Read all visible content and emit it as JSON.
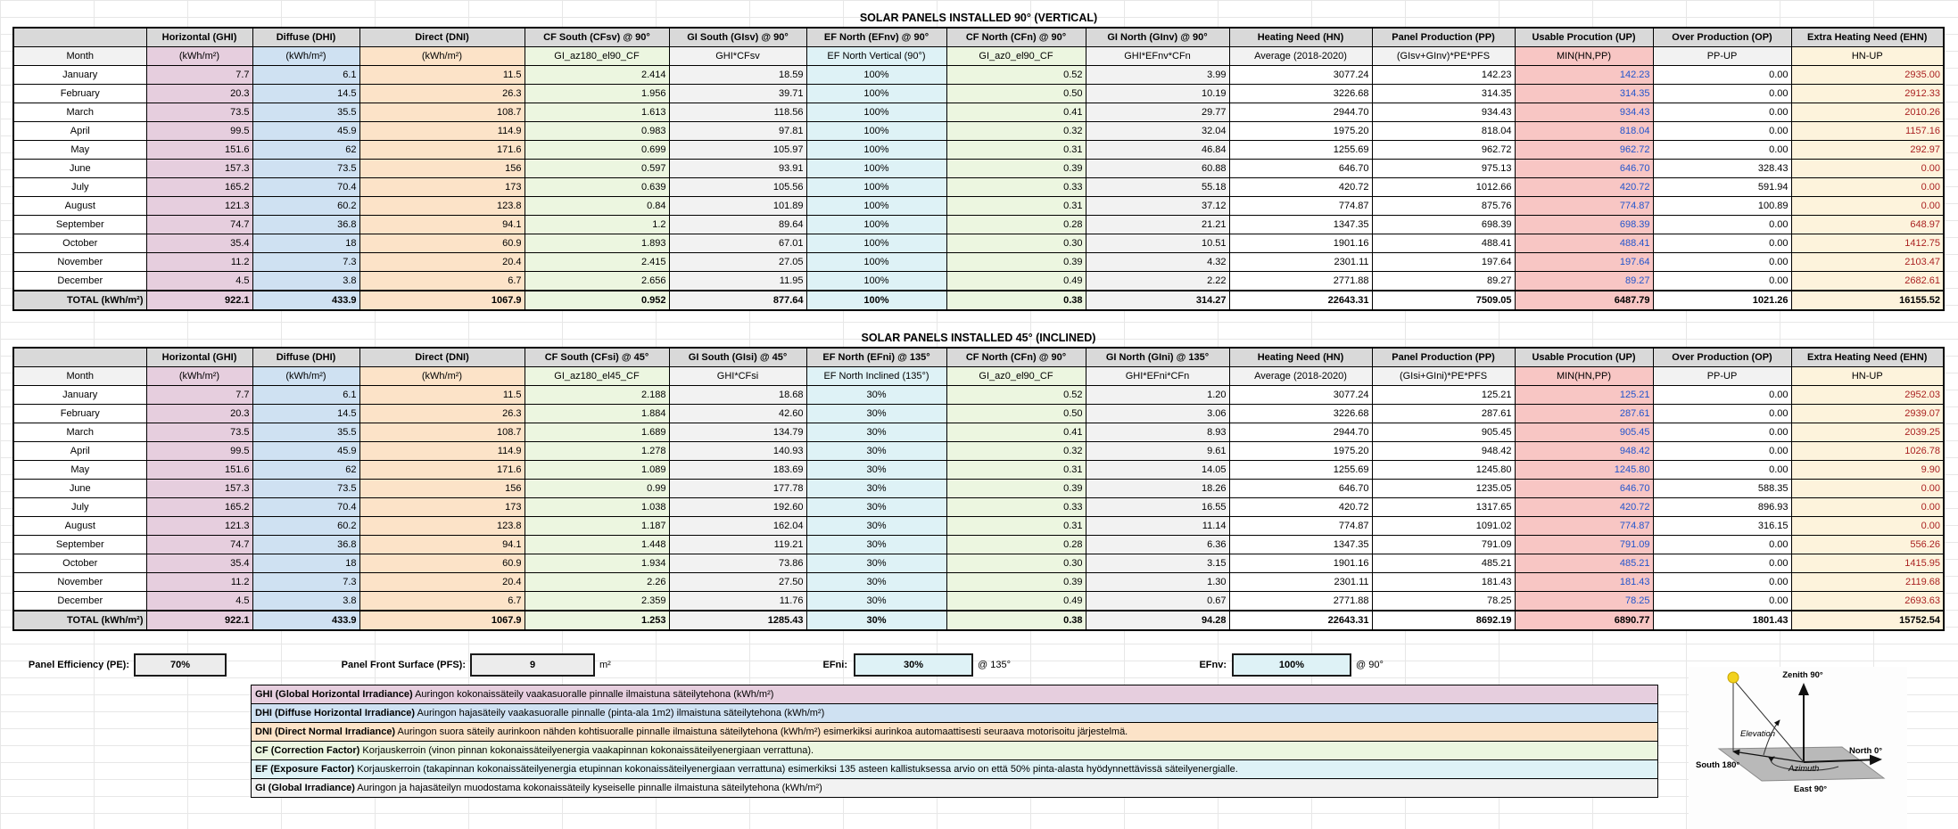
{
  "colors": {
    "header_bg": "#d9d9d9",
    "ghi_bg": "#e6cede",
    "dhi_bg": "#cfe1f2",
    "dni_bg": "#fce3c8",
    "cf_bg": "#ecf6e0",
    "gi_bg": "#f2f2f2",
    "ef_bg": "#def2f6",
    "up_bg": "#f8c6c4",
    "ehn_bg": "#fdf3dc",
    "up_text": "#2255cc",
    "ehn_text": "#aa2222"
  },
  "tables": [
    {
      "title": "SOLAR PANELS INSTALLED 90° (VERTICAL)",
      "columns": [
        {
          "key": "month",
          "header": "",
          "sub": "Month"
        },
        {
          "key": "ghi",
          "header": "Horizontal (GHI)",
          "sub": "(kWh/m²)"
        },
        {
          "key": "dhi",
          "header": "Diffuse (DHI)",
          "sub": "(kWh/m²)"
        },
        {
          "key": "dni",
          "header": "Direct (DNI)",
          "sub": "(kWh/m²)"
        },
        {
          "key": "cfs",
          "header": "CF South (CFsv) @ 90°",
          "sub": "GI_az180_el90_CF"
        },
        {
          "key": "gis",
          "header": "GI South (GIsv) @ 90°",
          "sub": "GHI*CFsv"
        },
        {
          "key": "efn",
          "header": "EF North (EFnv) @ 90°",
          "sub": "EF North Vertical (90°)"
        },
        {
          "key": "cfn",
          "header": "CF North (CFn) @ 90°",
          "sub": "GI_az0_el90_CF"
        },
        {
          "key": "gin",
          "header": "GI North (GInv) @ 90°",
          "sub": "GHI*EFnv*CFn"
        },
        {
          "key": "hn",
          "header": "Heating Need (HN)",
          "sub": "Average (2018-2020)"
        },
        {
          "key": "pp",
          "header": "Panel Production (PP)",
          "sub": "(GIsv+GInv)*PE*PFS"
        },
        {
          "key": "up",
          "header": "Usable Procution (UP)",
          "sub": "MIN(HN,PP)"
        },
        {
          "key": "op",
          "header": "Over Production (OP)",
          "sub": "PP-UP"
        },
        {
          "key": "ehn",
          "header": "Extra Heating Need (EHN)",
          "sub": "HN-UP"
        }
      ],
      "rows": [
        {
          "month": "January",
          "values": [
            "7.7",
            "6.1",
            "11.5",
            "2.414",
            "18.59",
            "100%",
            "0.52",
            "3.99",
            "3077.24",
            "142.23",
            "142.23",
            "0.00",
            "2935.00"
          ]
        },
        {
          "month": "February",
          "values": [
            "20.3",
            "14.5",
            "26.3",
            "1.956",
            "39.71",
            "100%",
            "0.50",
            "10.19",
            "3226.68",
            "314.35",
            "314.35",
            "0.00",
            "2912.33"
          ]
        },
        {
          "month": "March",
          "values": [
            "73.5",
            "35.5",
            "108.7",
            "1.613",
            "118.56",
            "100%",
            "0.41",
            "29.77",
            "2944.70",
            "934.43",
            "934.43",
            "0.00",
            "2010.26"
          ]
        },
        {
          "month": "April",
          "values": [
            "99.5",
            "45.9",
            "114.9",
            "0.983",
            "97.81",
            "100%",
            "0.32",
            "32.04",
            "1975.20",
            "818.04",
            "818.04",
            "0.00",
            "1157.16"
          ]
        },
        {
          "month": "May",
          "values": [
            "151.6",
            "62",
            "171.6",
            "0.699",
            "105.97",
            "100%",
            "0.31",
            "46.84",
            "1255.69",
            "962.72",
            "962.72",
            "0.00",
            "292.97"
          ]
        },
        {
          "month": "June",
          "values": [
            "157.3",
            "73.5",
            "156",
            "0.597",
            "93.91",
            "100%",
            "0.39",
            "60.88",
            "646.70",
            "975.13",
            "646.70",
            "328.43",
            "0.00"
          ]
        },
        {
          "month": "July",
          "values": [
            "165.2",
            "70.4",
            "173",
            "0.639",
            "105.56",
            "100%",
            "0.33",
            "55.18",
            "420.72",
            "1012.66",
            "420.72",
            "591.94",
            "0.00"
          ]
        },
        {
          "month": "August",
          "values": [
            "121.3",
            "60.2",
            "123.8",
            "0.84",
            "101.89",
            "100%",
            "0.31",
            "37.12",
            "774.87",
            "875.76",
            "774.87",
            "100.89",
            "0.00"
          ]
        },
        {
          "month": "September",
          "values": [
            "74.7",
            "36.8",
            "94.1",
            "1.2",
            "89.64",
            "100%",
            "0.28",
            "21.21",
            "1347.35",
            "698.39",
            "698.39",
            "0.00",
            "648.97"
          ]
        },
        {
          "month": "October",
          "values": [
            "35.4",
            "18",
            "60.9",
            "1.893",
            "67.01",
            "100%",
            "0.30",
            "10.51",
            "1901.16",
            "488.41",
            "488.41",
            "0.00",
            "1412.75"
          ]
        },
        {
          "month": "November",
          "values": [
            "11.2",
            "7.3",
            "20.4",
            "2.415",
            "27.05",
            "100%",
            "0.39",
            "4.32",
            "2301.11",
            "197.64",
            "197.64",
            "0.00",
            "2103.47"
          ]
        },
        {
          "month": "December",
          "values": [
            "4.5",
            "3.8",
            "6.7",
            "2.656",
            "11.95",
            "100%",
            "0.49",
            "2.22",
            "2771.88",
            "89.27",
            "89.27",
            "0.00",
            "2682.61"
          ]
        }
      ],
      "total": {
        "label": "TOTAL (kWh/m²)",
        "values": [
          "922.1",
          "433.9",
          "1067.9",
          "0.952",
          "877.64",
          "100%",
          "0.38",
          "314.27",
          "22643.31",
          "7509.05",
          "6487.79",
          "1021.26",
          "16155.52"
        ]
      }
    },
    {
      "title": "SOLAR PANELS INSTALLED 45° (INCLINED)",
      "columns": [
        {
          "key": "month",
          "header": "",
          "sub": "Month"
        },
        {
          "key": "ghi",
          "header": "Horizontal (GHI)",
          "sub": "(kWh/m²)"
        },
        {
          "key": "dhi",
          "header": "Diffuse (DHI)",
          "sub": "(kWh/m²)"
        },
        {
          "key": "dni",
          "header": "Direct (DNI)",
          "sub": "(kWh/m²)"
        },
        {
          "key": "cfs",
          "header": "CF South (CFsi) @ 45°",
          "sub": "GI_az180_el45_CF"
        },
        {
          "key": "gis",
          "header": "GI South (GIsi) @ 45°",
          "sub": "GHI*CFsi"
        },
        {
          "key": "efn",
          "header": "EF North (EFni) @ 135°",
          "sub": "EF North Inclined (135°)"
        },
        {
          "key": "cfn",
          "header": "CF North (CFn) @ 90°",
          "sub": "GI_az0_el90_CF"
        },
        {
          "key": "gin",
          "header": "GI North (GIni) @ 135°",
          "sub": "GHI*EFni*CFn"
        },
        {
          "key": "hn",
          "header": "Heating Need (HN)",
          "sub": "Average (2018-2020)"
        },
        {
          "key": "pp",
          "header": "Panel Production (PP)",
          "sub": "(GIsi+GIni)*PE*PFS"
        },
        {
          "key": "up",
          "header": "Usable Procution (UP)",
          "sub": "MIN(HN,PP)"
        },
        {
          "key": "op",
          "header": "Over Production (OP)",
          "sub": "PP-UP"
        },
        {
          "key": "ehn",
          "header": "Extra Heating Need (EHN)",
          "sub": "HN-UP"
        }
      ],
      "rows": [
        {
          "month": "January",
          "values": [
            "7.7",
            "6.1",
            "11.5",
            "2.188",
            "18.68",
            "30%",
            "0.52",
            "1.20",
            "3077.24",
            "125.21",
            "125.21",
            "0.00",
            "2952.03"
          ]
        },
        {
          "month": "February",
          "values": [
            "20.3",
            "14.5",
            "26.3",
            "1.884",
            "42.60",
            "30%",
            "0.50",
            "3.06",
            "3226.68",
            "287.61",
            "287.61",
            "0.00",
            "2939.07"
          ]
        },
        {
          "month": "March",
          "values": [
            "73.5",
            "35.5",
            "108.7",
            "1.689",
            "134.79",
            "30%",
            "0.41",
            "8.93",
            "2944.70",
            "905.45",
            "905.45",
            "0.00",
            "2039.25"
          ]
        },
        {
          "month": "April",
          "values": [
            "99.5",
            "45.9",
            "114.9",
            "1.278",
            "140.93",
            "30%",
            "0.32",
            "9.61",
            "1975.20",
            "948.42",
            "948.42",
            "0.00",
            "1026.78"
          ]
        },
        {
          "month": "May",
          "values": [
            "151.6",
            "62",
            "171.6",
            "1.089",
            "183.69",
            "30%",
            "0.31",
            "14.05",
            "1255.69",
            "1245.80",
            "1245.80",
            "0.00",
            "9.90"
          ]
        },
        {
          "month": "June",
          "values": [
            "157.3",
            "73.5",
            "156",
            "0.99",
            "177.78",
            "30%",
            "0.39",
            "18.26",
            "646.70",
            "1235.05",
            "646.70",
            "588.35",
            "0.00"
          ]
        },
        {
          "month": "July",
          "values": [
            "165.2",
            "70.4",
            "173",
            "1.038",
            "192.60",
            "30%",
            "0.33",
            "16.55",
            "420.72",
            "1317.65",
            "420.72",
            "896.93",
            "0.00"
          ]
        },
        {
          "month": "August",
          "values": [
            "121.3",
            "60.2",
            "123.8",
            "1.187",
            "162.04",
            "30%",
            "0.31",
            "11.14",
            "774.87",
            "1091.02",
            "774.87",
            "316.15",
            "0.00"
          ]
        },
        {
          "month": "September",
          "values": [
            "74.7",
            "36.8",
            "94.1",
            "1.448",
            "119.21",
            "30%",
            "0.28",
            "6.36",
            "1347.35",
            "791.09",
            "791.09",
            "0.00",
            "556.26"
          ]
        },
        {
          "month": "October",
          "values": [
            "35.4",
            "18",
            "60.9",
            "1.934",
            "73.86",
            "30%",
            "0.30",
            "3.15",
            "1901.16",
            "485.21",
            "485.21",
            "0.00",
            "1415.95"
          ]
        },
        {
          "month": "November",
          "values": [
            "11.2",
            "7.3",
            "20.4",
            "2.26",
            "27.50",
            "30%",
            "0.39",
            "1.30",
            "2301.11",
            "181.43",
            "181.43",
            "0.00",
            "2119.68"
          ]
        },
        {
          "month": "December",
          "values": [
            "4.5",
            "3.8",
            "6.7",
            "2.359",
            "11.76",
            "30%",
            "0.49",
            "0.67",
            "2771.88",
            "78.25",
            "78.25",
            "0.00",
            "2693.63"
          ]
        }
      ],
      "total": {
        "label": "TOTAL (kWh/m²)",
        "values": [
          "922.1",
          "433.9",
          "1067.9",
          "1.253",
          "1285.43",
          "30%",
          "0.38",
          "94.28",
          "22643.31",
          "8692.19",
          "6890.77",
          "1801.43",
          "15752.54"
        ]
      }
    }
  ],
  "parameters": [
    {
      "label": "Panel Efficiency (PE):",
      "value": "70%",
      "suffix": "",
      "style": "gray"
    },
    {
      "label": "Panel Front Surface (PFS):",
      "value": "9",
      "suffix": "m²",
      "style": "gray"
    },
    {
      "label": "EFni:",
      "value": "30%",
      "suffix": "@ 135°",
      "style": "cyan"
    },
    {
      "label": "EFnv:",
      "value": "100%",
      "suffix": "@ 90°",
      "style": "cyan"
    }
  ],
  "legend": [
    {
      "term": "GHI (Global Horizontal Irradiance)",
      "text": " Auringon kokonaissäteily vaakasuoralle pinnalle ilmaistuna säteilytehona (kWh/m²)",
      "color": "ghi"
    },
    {
      "term": "DHI (Diffuse Horizontal Irradiance)",
      "text": " Auringon hajasäteily vaakasuoralle pinnalle (pinta-ala 1m2) ilmaistuna säteilytehona (kWh/m²)",
      "color": "dhi"
    },
    {
      "term": "DNI (Direct Normal Irradiance)",
      "text": " Auringon suora säteily aurinkoon nähden kohtisuoralle pinnalle ilmaistuna säteilytehona (kWh/m²) esimerkiksi aurinkoa automaattisesti seuraava motorisoitu järjestelmä.",
      "color": "dni"
    },
    {
      "term": "CF (Correction Factor)",
      "text": " Korjauskerroin (vinon pinnan kokonaissäteilyenergia vaakapinnan kokonaissäteilyenergiaan verrattuna).",
      "color": "cf"
    },
    {
      "term": "EF (Exposure Factor)",
      "text": " Korjauskerroin (takapinnan kokonaissäteilyenergia etupinnan kokonaissäteilyenergiaan verrattuna) esimerkiksi 135 asteen kallistuksessa arvio on että 50% pinta-alasta hyödynnettävissä säteilyenergialle.",
      "color": "ef"
    },
    {
      "term": "GI (Global Irradiance)",
      "text": " Auringon ja hajasäteilyn muodostama kokonaissäteily kyseiselle pinnalle ilmaistuna säteilytehona (kWh/m²)",
      "color": "gi"
    }
  ],
  "diagram": {
    "labels": {
      "zenith": "Zenith 90°",
      "north": "North 0°",
      "south": "South 180°",
      "east": "East 90°",
      "elevation": "Elevation",
      "azimuth": "Azimuth"
    }
  }
}
